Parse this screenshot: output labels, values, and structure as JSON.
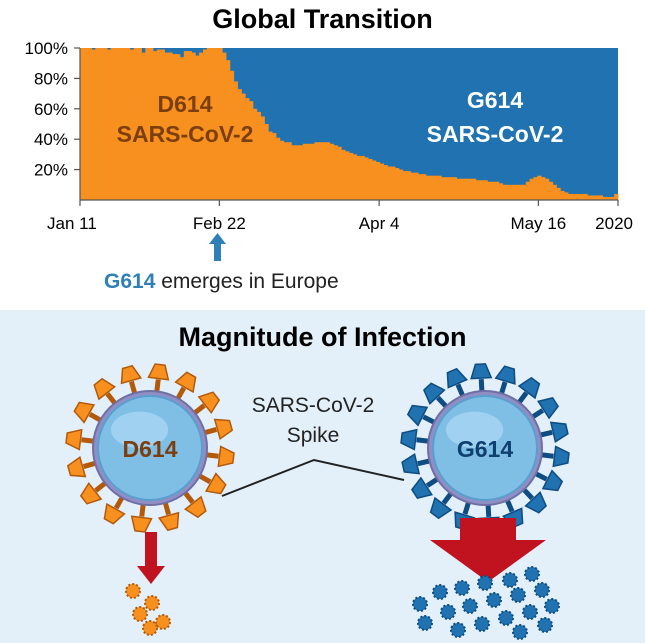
{
  "chart_data": {
    "type": "area",
    "title": "Global Transition",
    "x_tick_labels": [
      "Jan 11",
      "Feb 22",
      "Apr 4",
      "May 16",
      "2020"
    ],
    "y_tick_labels": [
      "100%",
      "80%",
      "60%",
      "40%",
      "20%"
    ],
    "ylim": [
      0,
      100
    ],
    "series": [
      {
        "name": "D614",
        "label_line1": "D614",
        "label_line2": "SARS-CoV-2",
        "color": "#f7901e"
      },
      {
        "name": "G614",
        "label_line1": "G614",
        "label_line2": "SARS-CoV-2",
        "color": "#2072b0"
      }
    ],
    "d614_share_percent": [
      100,
      100,
      100,
      99,
      100,
      100,
      100,
      99,
      100,
      100,
      100,
      100,
      100,
      99,
      100,
      100,
      97,
      100,
      100,
      98,
      99,
      99,
      97,
      97,
      96,
      96,
      94,
      98,
      98,
      97,
      95,
      97,
      99,
      100,
      100,
      100,
      100,
      97,
      92,
      85,
      78,
      73,
      70,
      67,
      65,
      60,
      58,
      55,
      50,
      45,
      44,
      41,
      39,
      38,
      38,
      36,
      36,
      36,
      37,
      37,
      37,
      38,
      38,
      38,
      38,
      37,
      36,
      35,
      33,
      32,
      31,
      30,
      29,
      29,
      28,
      27,
      26,
      25,
      24,
      23,
      22,
      22,
      21,
      20,
      19,
      19,
      18,
      18,
      17,
      17,
      16,
      16,
      16,
      16,
      15,
      15,
      15,
      15,
      14,
      14,
      14,
      14,
      14,
      13,
      13,
      13,
      12,
      12,
      12,
      11,
      10,
      10,
      10,
      10,
      10,
      10,
      12,
      14,
      15,
      16,
      15,
      14,
      12,
      10,
      8,
      6,
      5,
      4,
      4,
      4,
      4,
      4,
      3,
      3,
      3,
      3,
      2,
      2,
      2,
      4
    ],
    "grid": false,
    "legend": "none"
  },
  "annotation": {
    "arrow": "up-arrow",
    "text_highlight": "G614",
    "text_rest": " emerges in Europe",
    "highlight_color": "#2f7fb8"
  },
  "bottom_panel": {
    "title": "Magnitude of Infection",
    "spike_label_line1": "SARS-CoV-2",
    "spike_label_line2": "Spike",
    "left_virus_label": "D614",
    "right_virus_label": "G614",
    "left_color": "#f7901e",
    "right_color": "#2072b0",
    "arrow_color": "#c1121f",
    "panel_color": "#e3f0fa"
  }
}
